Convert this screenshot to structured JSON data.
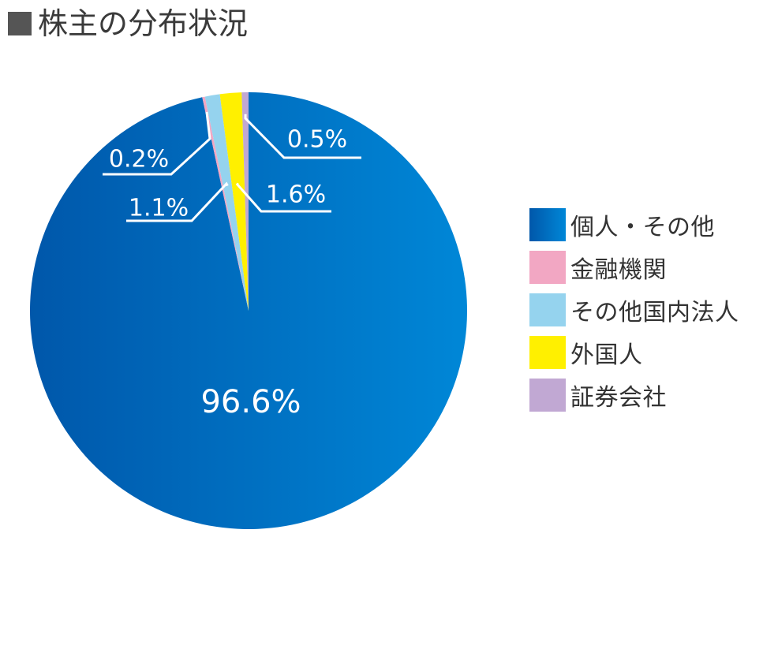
{
  "title": "株主の分布状況",
  "chart_data": {
    "type": "pie",
    "title": "株主の分布状況",
    "slices": [
      {
        "name": "個人・その他",
        "value": 96.6,
        "label": "96.6%",
        "color": "#0073c6"
      },
      {
        "name": "金融機関",
        "value": 0.2,
        "label": "0.2%",
        "color": "#f2a7c3"
      },
      {
        "name": "その他国内法人",
        "value": 1.1,
        "label": "1.1%",
        "color": "#95d3ee"
      },
      {
        "name": "外国人",
        "value": 1.6,
        "label": "1.6%",
        "color": "#fff000"
      },
      {
        "name": "証券会社",
        "value": 0.5,
        "label": "0.5%",
        "color": "#c1a8d3"
      }
    ],
    "legend_position": "right"
  }
}
